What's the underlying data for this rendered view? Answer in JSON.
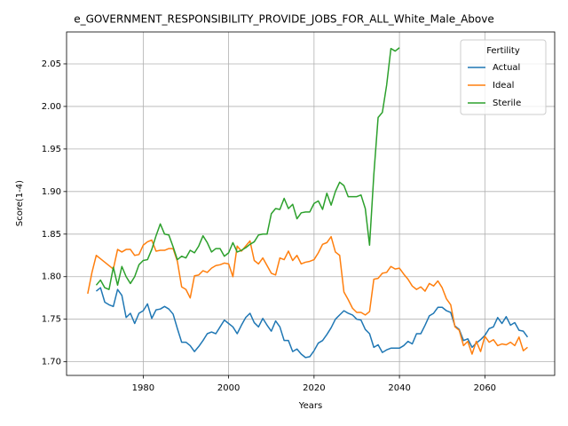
{
  "chart_data": {
    "type": "line",
    "title": "e_GOVERNMENT_RESPONSIBILITY_PROVIDE_JOBS_FOR_ALL_White_Male_Above",
    "x_label": "Years",
    "y_label": "Score(1-4)",
    "legend_title": "Fertility",
    "legend": "upper right",
    "grid": true,
    "xlim": [
      1962.05,
      2076.35
    ],
    "ylim": [
      1.684,
      2.0875
    ],
    "xticks": [
      1980,
      2000,
      2020,
      2040,
      2060
    ],
    "yticks": [
      {
        "value": 1.7,
        "label": "1.70"
      },
      {
        "value": 1.75,
        "label": "1.75"
      },
      {
        "value": 1.8,
        "label": "1.80"
      },
      {
        "value": 1.85,
        "label": "1.85"
      },
      {
        "value": 1.9,
        "label": "1.90"
      },
      {
        "value": 1.95,
        "label": "1.95"
      },
      {
        "value": 2.0,
        "label": "2.00"
      },
      {
        "value": 2.05,
        "label": "2.05"
      }
    ],
    "x": [
      1967,
      1968,
      1969,
      1970,
      1971,
      1972,
      1973,
      1974,
      1975,
      1976,
      1977,
      1978,
      1979,
      1980,
      1981,
      1982,
      1983,
      1984,
      1985,
      1986,
      1987,
      1988,
      1989,
      1990,
      1991,
      1992,
      1993,
      1994,
      1995,
      1996,
      1997,
      1998,
      1999,
      2000,
      2001,
      2002,
      2003,
      2004,
      2005,
      2006,
      2007,
      2008,
      2009,
      2010,
      2011,
      2012,
      2013,
      2014,
      2015,
      2016,
      2017,
      2018,
      2019,
      2020,
      2021,
      2022,
      2023,
      2024,
      2025,
      2026,
      2027,
      2028,
      2029,
      2030,
      2031,
      2032,
      2033,
      2034,
      2035,
      2036,
      2037,
      2038,
      2039,
      2040,
      2041,
      2042,
      2043,
      2044,
      2045,
      2046,
      2047,
      2048,
      2049,
      2050,
      2051,
      2052,
      2053,
      2054,
      2055,
      2056,
      2057,
      2058,
      2059,
      2060,
      2061,
      2062,
      2063,
      2064,
      2065,
      2066,
      2067,
      2068,
      2069,
      2070
    ],
    "series": [
      {
        "name": "Actual",
        "color": "#1f77b4",
        "values": [
          null,
          null,
          1.783,
          1.787,
          1.77,
          1.767,
          1.765,
          1.785,
          1.778,
          1.752,
          1.757,
          1.745,
          1.757,
          1.76,
          1.768,
          1.751,
          1.761,
          1.762,
          1.765,
          1.762,
          1.756,
          1.739,
          1.723,
          1.723,
          1.719,
          1.712,
          1.718,
          1.725,
          1.733,
          1.735,
          1.733,
          1.741,
          1.749,
          1.745,
          1.741,
          1.733,
          1.743,
          1.752,
          1.757,
          1.746,
          1.741,
          1.751,
          1.743,
          1.736,
          1.748,
          1.741,
          1.725,
          1.725,
          1.712,
          1.715,
          1.709,
          1.705,
          1.706,
          1.713,
          1.722,
          1.725,
          1.732,
          1.74,
          1.75,
          1.755,
          1.76,
          1.757,
          1.755,
          1.75,
          1.749,
          1.738,
          1.733,
          1.717,
          1.72,
          1.711,
          1.714,
          1.716,
          1.716,
          1.716,
          1.719,
          1.724,
          1.721,
          1.733,
          1.733,
          1.743,
          1.754,
          1.757,
          1.764,
          1.764,
          1.76,
          1.758,
          1.742,
          1.738,
          1.725,
          1.727,
          1.717,
          1.722,
          1.726,
          1.731,
          1.739,
          1.741,
          1.752,
          1.745,
          1.753,
          1.743,
          1.746,
          1.737,
          1.736,
          1.729
        ]
      },
      {
        "name": "Ideal",
        "color": "#ff7f0e",
        "values": [
          1.78,
          1.805,
          1.825,
          1.821,
          1.817,
          1.813,
          1.809,
          1.832,
          1.829,
          1.832,
          1.832,
          1.825,
          1.826,
          1.837,
          1.841,
          1.843,
          1.83,
          1.831,
          1.831,
          1.833,
          1.833,
          1.818,
          1.788,
          1.785,
          1.775,
          1.801,
          1.802,
          1.807,
          1.805,
          1.81,
          1.813,
          1.814,
          1.816,
          1.815,
          1.8,
          1.836,
          1.83,
          1.836,
          1.842,
          1.819,
          1.815,
          1.822,
          1.813,
          1.804,
          1.802,
          1.822,
          1.82,
          1.83,
          1.819,
          1.825,
          1.815,
          1.817,
          1.818,
          1.82,
          1.828,
          1.838,
          1.84,
          1.847,
          1.829,
          1.825,
          1.782,
          1.773,
          1.763,
          1.758,
          1.758,
          1.755,
          1.759,
          1.797,
          1.798,
          1.804,
          1.805,
          1.812,
          1.809,
          1.81,
          1.803,
          1.797,
          1.789,
          1.785,
          1.788,
          1.783,
          1.792,
          1.789,
          1.795,
          1.787,
          1.774,
          1.767,
          1.741,
          1.737,
          1.719,
          1.724,
          1.709,
          1.724,
          1.712,
          1.73,
          1.723,
          1.726,
          1.719,
          1.721,
          1.72,
          1.723,
          1.719,
          1.729,
          1.713,
          1.717
        ]
      },
      {
        "name": "Sterile",
        "color": "#2ca02c",
        "values": [
          null,
          null,
          1.79,
          1.796,
          1.787,
          1.785,
          1.811,
          1.79,
          1.812,
          1.8,
          1.792,
          1.8,
          1.814,
          1.819,
          1.82,
          1.832,
          1.848,
          1.862,
          1.85,
          1.849,
          1.835,
          1.82,
          1.824,
          1.822,
          1.831,
          1.828,
          1.836,
          1.848,
          1.84,
          1.829,
          1.833,
          1.833,
          1.824,
          1.828,
          1.84,
          1.829,
          1.831,
          1.834,
          1.838,
          1.841,
          1.849,
          1.85,
          1.85,
          1.874,
          1.88,
          1.879,
          1.892,
          1.88,
          1.885,
          1.868,
          1.875,
          1.876,
          1.876,
          1.886,
          1.889,
          1.879,
          1.898,
          1.884,
          1.9,
          1.911,
          1.907,
          1.894,
          1.894,
          1.894,
          1.896,
          1.88,
          1.837,
          1.92,
          1.987,
          1.993,
          2.025,
          2.068,
          2.065,
          2.069,
          null,
          null,
          null,
          null,
          null,
          null,
          null,
          null,
          null,
          null,
          null,
          null,
          null,
          null,
          null,
          null,
          null,
          null,
          null,
          null,
          null,
          null,
          null,
          null,
          null,
          null,
          null,
          null,
          null,
          null
        ]
      }
    ]
  }
}
